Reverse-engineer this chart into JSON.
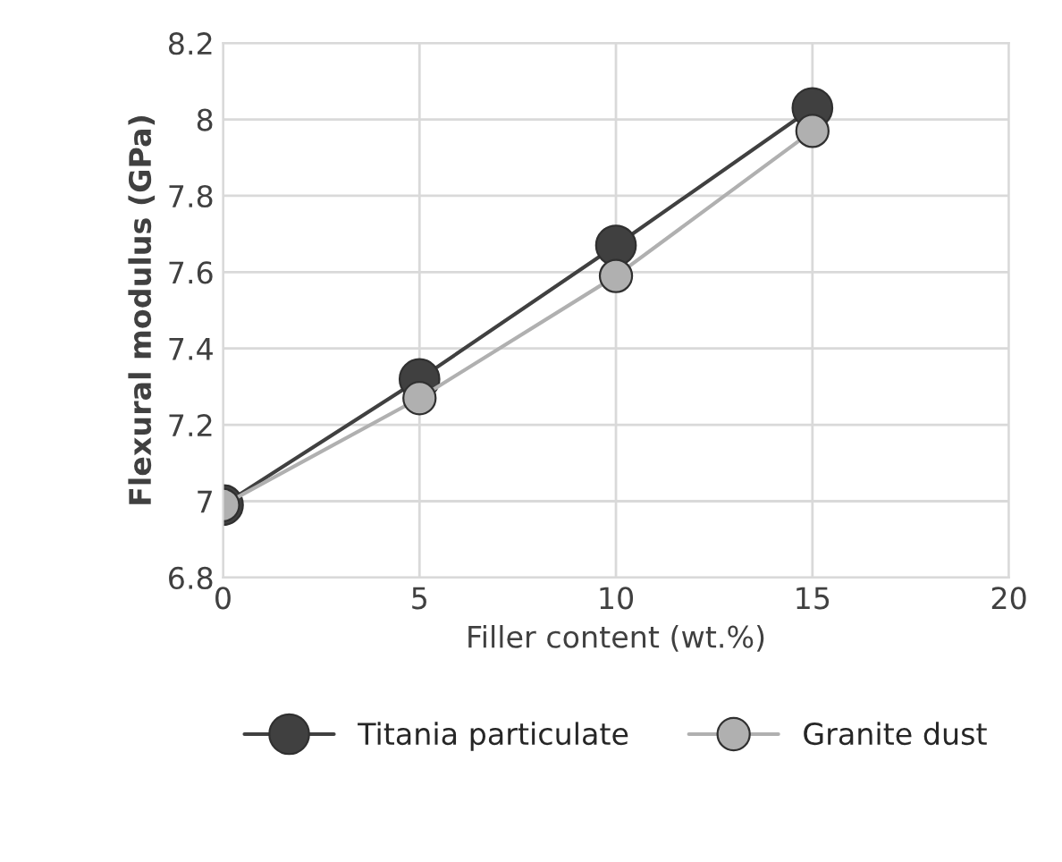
{
  "chart_data": {
    "type": "line",
    "xlabel": "Filler content (wt.%)",
    "ylabel": "Flexural modulus (GPa)",
    "x": [
      0,
      5,
      10,
      15
    ],
    "series": [
      {
        "name": "Titania particulate",
        "color": "#404040",
        "values": [
          6.99,
          7.32,
          7.67,
          8.03
        ]
      },
      {
        "name": "Granite dust",
        "color": "#b0b0b0",
        "values": [
          6.99,
          7.27,
          7.59,
          7.97
        ]
      }
    ],
    "xlim": [
      0,
      20
    ],
    "xticks": [
      0,
      5,
      10,
      15,
      20
    ],
    "ylim": [
      6.8,
      8.2
    ],
    "yticks": [
      6.8,
      7,
      7.2,
      7.4,
      7.6,
      7.8,
      8,
      8.2
    ],
    "grid": true,
    "legend": "bottom",
    "marker": "circle",
    "line_style": "solid"
  }
}
